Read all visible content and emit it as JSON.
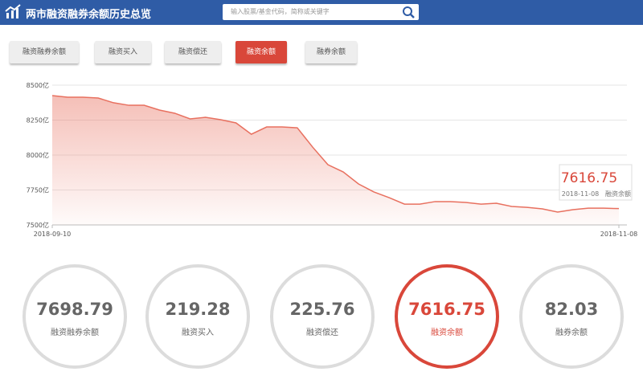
{
  "header": {
    "title": "两市融资融券余额历史总览",
    "search_placeholder": "输入股票/基金代码，简称或关键字"
  },
  "tabs": [
    {
      "label": "融资融券余额",
      "active": false
    },
    {
      "label": "融资买入",
      "active": false
    },
    {
      "label": "融资偿还",
      "active": false
    },
    {
      "label": "融资余额",
      "active": true
    },
    {
      "label": "融券余额",
      "active": false
    }
  ],
  "chart_data": {
    "type": "area",
    "categories": [
      "2018-09-10",
      null,
      null,
      null,
      null,
      null,
      null,
      null,
      null,
      null,
      null,
      null,
      null,
      null,
      null,
      null,
      null,
      null,
      null,
      null,
      null,
      null,
      null,
      null,
      null,
      null,
      null,
      null,
      null,
      null,
      null,
      null,
      null,
      null,
      null,
      null,
      null,
      "2018-11-08"
    ],
    "series": [
      {
        "name": "融资余额",
        "color": "#e8705f",
        "values": [
          8425,
          8414,
          8414,
          8408,
          8374,
          8356,
          8356,
          8322,
          8299,
          8259,
          8270,
          8253,
          8230,
          8149,
          8201,
          8201,
          8195,
          8057,
          7931,
          7879,
          7793,
          7736,
          7695,
          7649,
          7649,
          7667,
          7667,
          7661,
          7649,
          7655,
          7632,
          7626,
          7615,
          7592,
          7609,
          7620,
          7620,
          7616.75
        ]
      }
    ],
    "ylim": [
      7500,
      8500
    ],
    "yticks": [
      {
        "value": 7500,
        "label": "7500亿"
      },
      {
        "value": 7750,
        "label": "7750亿"
      },
      {
        "value": 8000,
        "label": "8000亿"
      },
      {
        "value": 8250,
        "label": "8250亿"
      },
      {
        "value": 8500,
        "label": "8500亿"
      }
    ],
    "grid": true
  },
  "stats": [
    {
      "value": 7698.79,
      "label": "融资融券余额",
      "active": false
    },
    {
      "value": 219.28,
      "label": "融资买入",
      "active": false
    },
    {
      "value": 225.76,
      "label": "融资偿还",
      "active": false
    },
    {
      "value": 7616.75,
      "label": "融资余额",
      "active": true
    },
    {
      "value": 82.03,
      "label": "融券余额",
      "active": false
    }
  ]
}
